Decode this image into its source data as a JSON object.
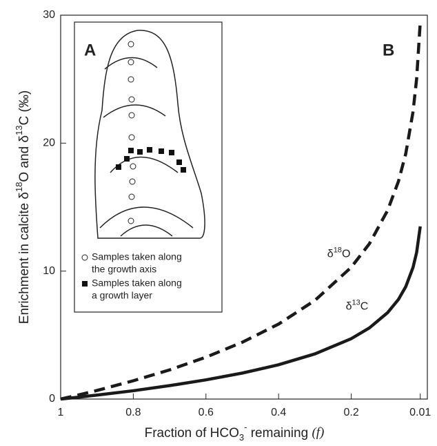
{
  "chart_data": {
    "type": "line",
    "x_label": [
      "Fraction of HCO",
      "3",
      "-",
      " remaining ",
      "(f)"
    ],
    "y_label": [
      "Enrichment in calcite δ",
      "18",
      "O and δ",
      "13",
      "C (‰)"
    ],
    "x": [
      1,
      0.95,
      0.9,
      0.8,
      0.7,
      0.6,
      0.5,
      0.4,
      0.3,
      0.2,
      0.15,
      0.1,
      0.07,
      0.05,
      0.03,
      0.02,
      0.01
    ],
    "series": [
      {
        "name": "δ18O",
        "color": "#1a1a1a",
        "dash": true,
        "values": [
          0,
          0.33,
          0.67,
          1.43,
          2.28,
          3.27,
          4.44,
          5.86,
          7.71,
          10.3,
          12.14,
          14.74,
          17.02,
          19.17,
          22.44,
          25.04,
          29.47
        ]
      },
      {
        "name": "δ13C",
        "color": "#1a1a1a",
        "dash": false,
        "values": [
          0,
          0.15,
          0.31,
          0.65,
          1.05,
          1.5,
          2.03,
          2.68,
          3.53,
          4.72,
          5.56,
          6.75,
          7.79,
          8.78,
          10.28,
          11.46,
          13.49
        ]
      }
    ],
    "xlim": [
      1,
      0
    ],
    "xticks": [
      1,
      0.8,
      0.6,
      0.4,
      0.2,
      0.01
    ],
    "ylim": [
      0,
      30
    ],
    "yticks": [
      0,
      10,
      20,
      30
    ],
    "panel_labels": [
      "A",
      "B"
    ],
    "inset_legend": [
      [
        "Samples taken along",
        "the growth axis"
      ],
      [
        "Samples taken along",
        "a growth layer"
      ]
    ]
  }
}
